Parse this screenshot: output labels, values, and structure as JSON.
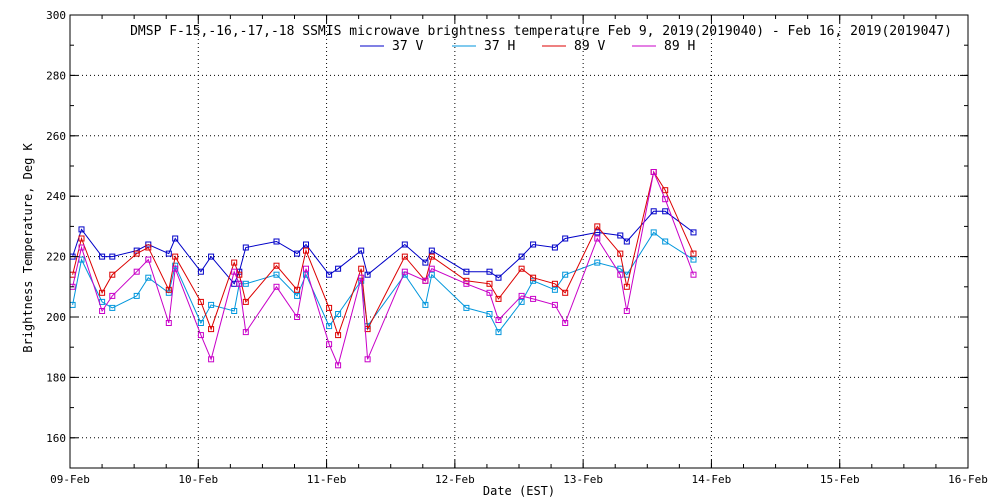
{
  "chart_data": {
    "type": "line",
    "title": "DMSP F-15,-16,-17,-18 SSMIS microwave brightness temperature Feb  9, 2019(2019040) - Feb 16, 2019(2019047)",
    "xlabel": "Date (EST)",
    "ylabel": "Brightness Temperature, Deg K",
    "xlim": [
      0,
      7
    ],
    "ylim": [
      150,
      300
    ],
    "yticks": [
      160,
      180,
      200,
      220,
      240,
      260,
      280,
      300
    ],
    "xtick_labels": [
      "09-Feb",
      "10-Feb",
      "11-Feb",
      "12-Feb",
      "13-Feb",
      "14-Feb",
      "15-Feb",
      "16-Feb"
    ],
    "grid": true,
    "x": [
      0.02,
      0.09,
      0.25,
      0.33,
      0.52,
      0.61,
      0.77,
      0.82,
      1.02,
      1.1,
      1.28,
      1.32,
      1.37,
      1.61,
      1.77,
      1.84,
      2.02,
      2.09,
      2.27,
      2.32,
      2.61,
      2.77,
      2.82,
      3.09,
      3.27,
      3.34,
      3.52,
      3.61,
      3.78,
      3.86,
      4.11,
      4.29,
      4.34,
      4.55,
      4.64,
      4.86
    ],
    "series": [
      {
        "name": "37 V",
        "color": "#0000c8",
        "values": [
          220,
          229,
          220,
          220,
          222,
          224,
          221,
          226,
          215,
          220,
          211,
          215,
          223,
          225,
          221,
          224,
          214,
          216,
          222,
          214,
          224,
          218,
          222,
          215,
          215,
          213,
          220,
          224,
          223,
          226,
          228,
          227,
          225,
          235,
          235,
          228
        ]
      },
      {
        "name": "37 H",
        "color": "#0096dc",
        "values": [
          204,
          219,
          205,
          203,
          207,
          213,
          208,
          217,
          198,
          204,
          202,
          211,
          211,
          214,
          207,
          214,
          197,
          201,
          212,
          197,
          214,
          204,
          214,
          203,
          201,
          195,
          205,
          212,
          209,
          214,
          218,
          216,
          214,
          228,
          225,
          219
        ]
      },
      {
        "name": "89 V",
        "color": "#dc0000",
        "values": [
          214,
          226,
          208,
          214,
          221,
          223,
          209,
          220,
          205,
          196,
          218,
          214,
          205,
          217,
          209,
          222,
          203,
          194,
          216,
          196,
          220,
          212,
          220,
          212,
          211,
          206,
          216,
          213,
          211,
          208,
          230,
          221,
          210,
          248,
          242,
          221
        ]
      },
      {
        "name": "89 H",
        "color": "#c800c8",
        "values": [
          210,
          223,
          202,
          207,
          215,
          219,
          198,
          216,
          194,
          186,
          215,
          211,
          195,
          210,
          200,
          216,
          191,
          184,
          213,
          186,
          215,
          212,
          216,
          211,
          208,
          199,
          207,
          206,
          204,
          198,
          226,
          214,
          202,
          248,
          239,
          214
        ]
      }
    ]
  }
}
